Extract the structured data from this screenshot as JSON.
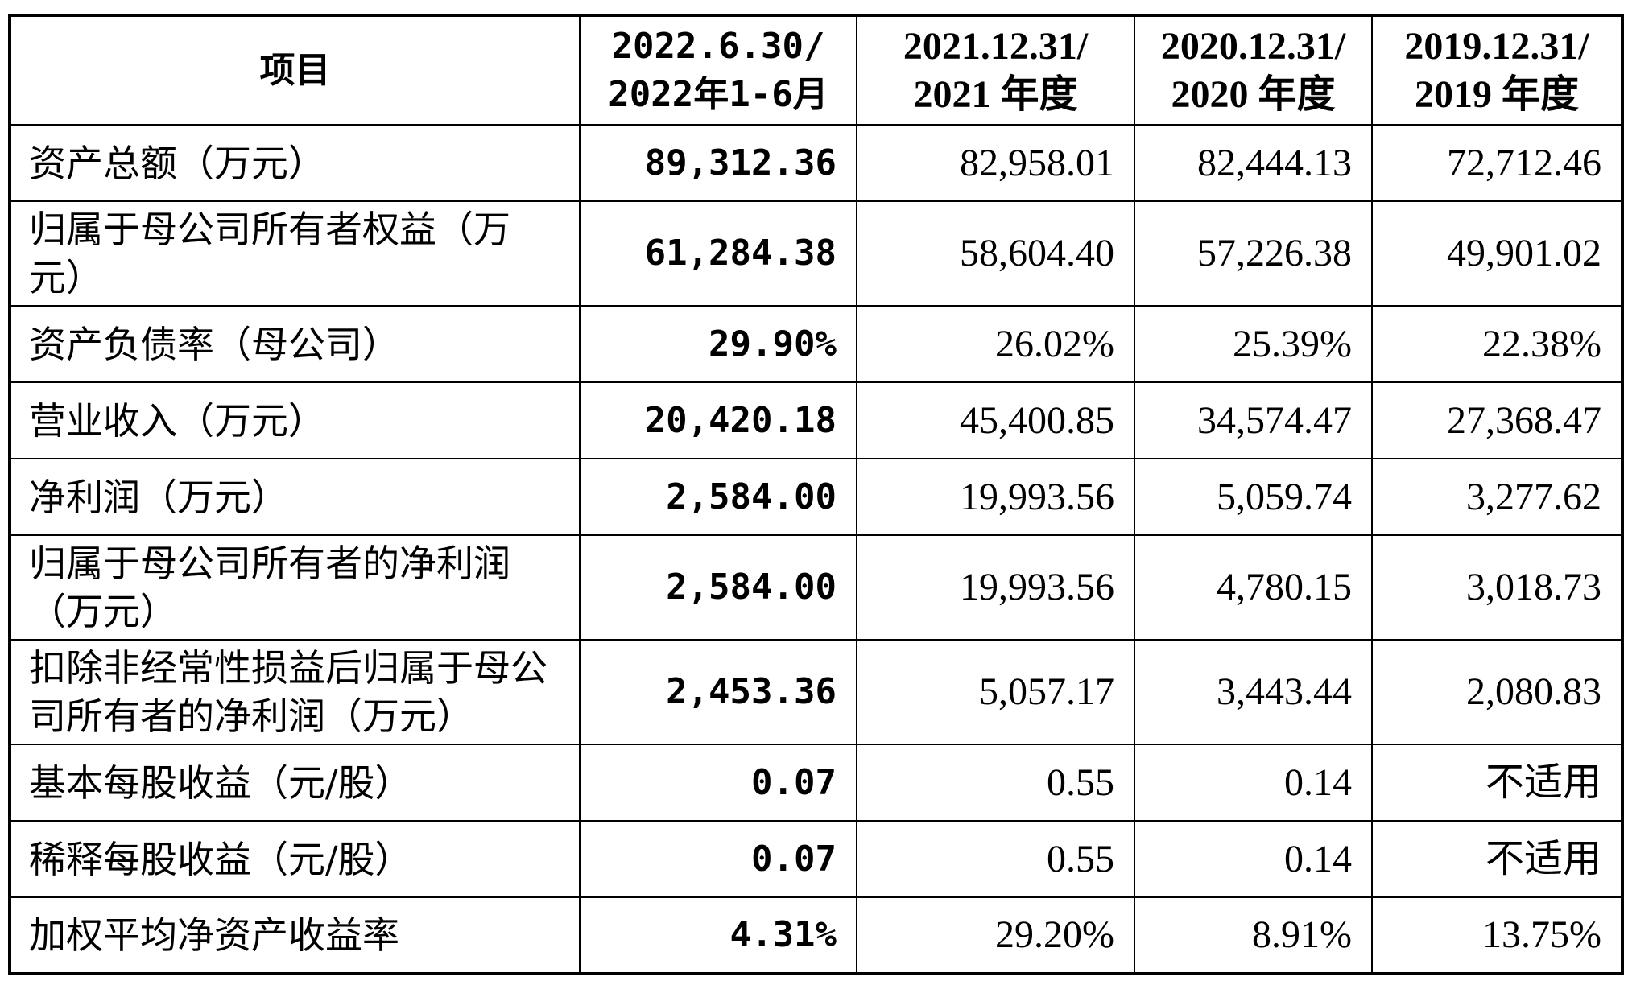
{
  "table": {
    "headers": [
      {
        "lines": [
          "项目"
        ]
      },
      {
        "lines": [
          "2022.6.30/",
          "2022年1-6月"
        ]
      },
      {
        "lines": [
          "2021.12.31/",
          "2021 年度"
        ]
      },
      {
        "lines": [
          "2020.12.31/",
          "2020 年度"
        ]
      },
      {
        "lines": [
          "2019.12.31/",
          "2019 年度"
        ]
      }
    ],
    "rows": [
      {
        "label": "资产总额（万元）",
        "values": [
          "89,312.36",
          "82,958.01",
          "82,444.13",
          "72,712.46"
        ]
      },
      {
        "label": "归属于母公司所有者权益（万元）",
        "values": [
          "61,284.38",
          "58,604.40",
          "57,226.38",
          "49,901.02"
        ]
      },
      {
        "label": "资产负债率（母公司）",
        "values": [
          "29.90%",
          "26.02%",
          "25.39%",
          "22.38%"
        ]
      },
      {
        "label": "营业收入（万元）",
        "values": [
          "20,420.18",
          "45,400.85",
          "34,574.47",
          "27,368.47"
        ]
      },
      {
        "label": "净利润（万元）",
        "values": [
          "2,584.00",
          "19,993.56",
          "5,059.74",
          "3,277.62"
        ]
      },
      {
        "label": "归属于母公司所有者的净利润（万元）",
        "values": [
          "2,584.00",
          "19,993.56",
          "4,780.15",
          "3,018.73"
        ]
      },
      {
        "label": "扣除非经常性损益后归属于母公司所有者的净利润（万元）",
        "values": [
          "2,453.36",
          "5,057.17",
          "3,443.44",
          "2,080.83"
        ]
      },
      {
        "label": "基本每股收益（元/股）",
        "values": [
          "0.07",
          "0.55",
          "0.14",
          "不适用"
        ]
      },
      {
        "label": "稀释每股收益（元/股）",
        "values": [
          "0.07",
          "0.55",
          "0.14",
          "不适用"
        ]
      },
      {
        "label": "加权平均净资产收益率",
        "values": [
          "4.31%",
          "29.20%",
          "8.91%",
          "13.75%"
        ]
      }
    ]
  }
}
